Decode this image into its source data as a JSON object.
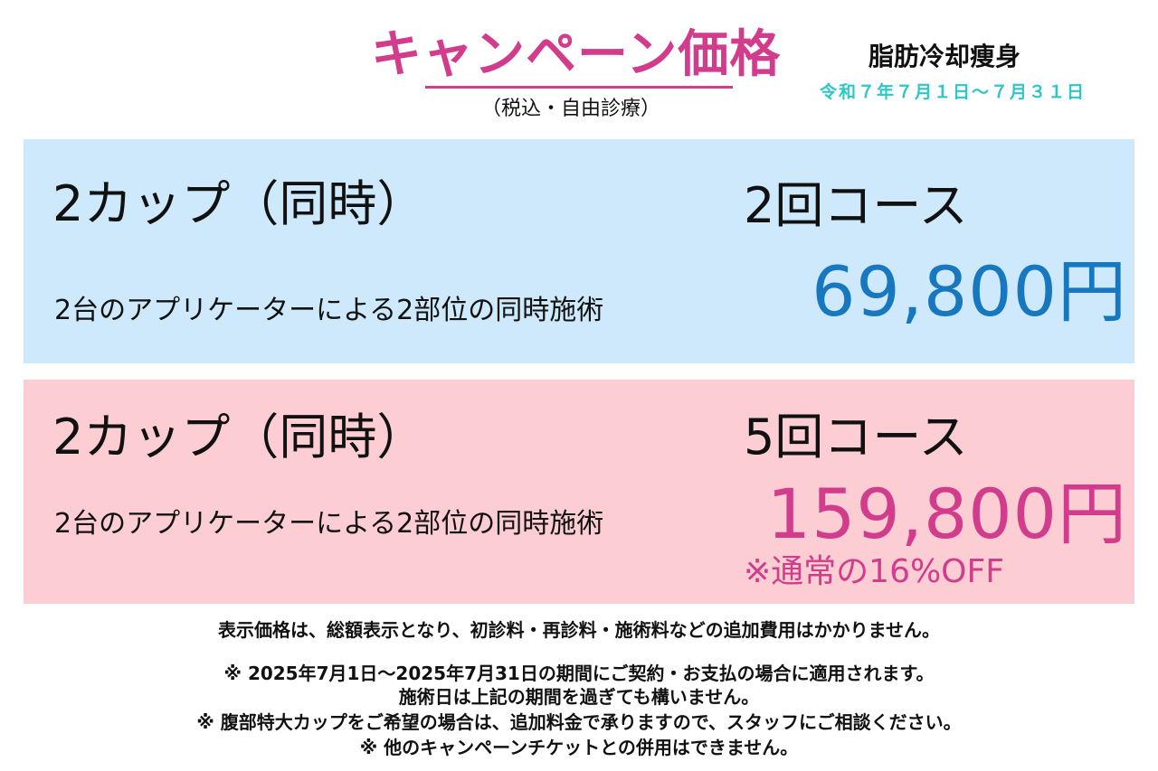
{
  "header": {
    "title": "キャンペーン価格",
    "tax_note": "（税込・自由診療）",
    "treatment": "脂肪冷却痩身",
    "period": "令和７年７月１日〜７月３１日"
  },
  "colors": {
    "title": "#d23c8c",
    "period": "#2ec6c6",
    "panel_blue": "#cde9fb",
    "panel_pink": "#fccdd3",
    "price_blue": "#1777bf",
    "price_pink": "#d23c8c"
  },
  "plans": [
    {
      "cups": "2カップ（同時）",
      "description": "2台のアプリケーターによる2部位の同時施術",
      "course": "2回コース",
      "price": "69,800円"
    },
    {
      "cups": "2カップ（同時）",
      "description": "2台のアプリケーターによる2部位の同時施術",
      "course": "5回コース",
      "price": "159,800円",
      "discount": "※通常の16%OFF"
    }
  ],
  "notes": [
    "表示価格は、総額表示となり、初診料・再診料・施術料などの追加費用はかかりません。",
    "※ 2025年7月1日〜2025年7月31日の期間にご契約・お支払の場合に適用されます。",
    "施術日は上記の期間を過ぎても構いません。",
    "※ 腹部特大カップをご希望の場合は、追加料金で承りますので、スタッフにご相談ください。",
    "※ 他のキャンペーンチケットとの併用はできません。"
  ]
}
